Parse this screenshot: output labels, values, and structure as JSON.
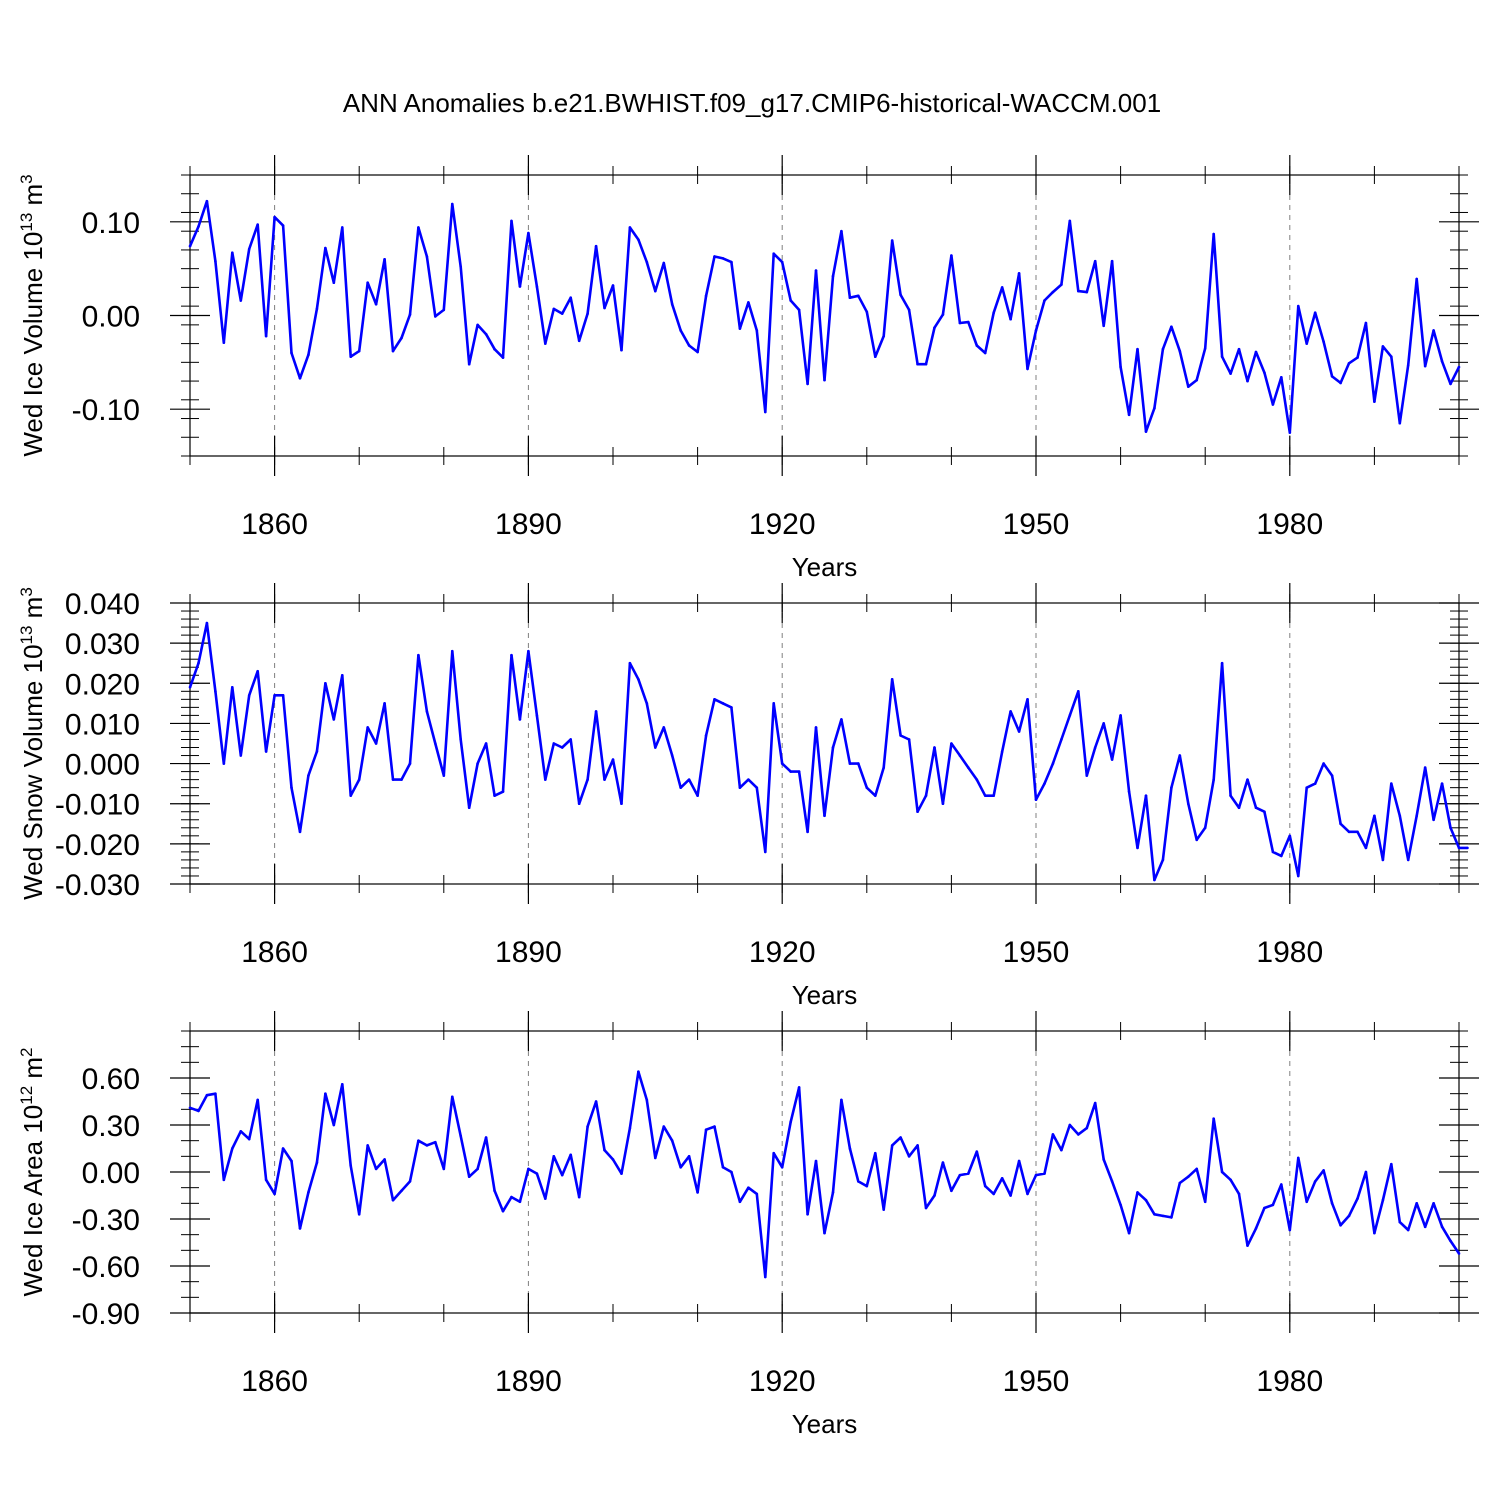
{
  "title": "ANN Anomalies b.e21.BWHIST.f09_g17.CMIP6-historical-WACCM.001",
  "colors": {
    "line": "#0000ff",
    "axis": "#000000",
    "grid": "#808080"
  },
  "chart_data": [
    {
      "type": "line",
      "ylabel_main": "Wed Ice Volume 10",
      "ylabel_sup": "13",
      "ylabel_unit": " m",
      "ylabel_unit_sup": "3",
      "xlabel": "Years",
      "xlim": [
        1850,
        2000
      ],
      "ylim": [
        -0.15,
        0.15
      ],
      "yticks": [
        -0.1,
        0.0,
        0.1
      ],
      "ytick_labels": [
        "-0.10",
        "0.00",
        "0.10"
      ],
      "yminor_step": 0.02,
      "xticks": [
        1860,
        1890,
        1920,
        1950,
        1980
      ],
      "xtick_labels": [
        "1860",
        "1890",
        "1920",
        "1950",
        "1980"
      ],
      "xminor_step": 10,
      "vgrid": [
        1860,
        1890,
        1920,
        1950,
        1980
      ],
      "x_start": 1850,
      "values": [
        0.074,
        0.095,
        0.122,
        0.058,
        -0.029,
        0.067,
        0.016,
        0.071,
        0.097,
        -0.022,
        0.105,
        0.096,
        -0.04,
        -0.067,
        -0.042,
        0.007,
        0.072,
        0.035,
        0.094,
        -0.044,
        -0.038,
        0.035,
        0.012,
        0.06,
        -0.038,
        -0.024,
        0.001,
        0.094,
        0.063,
        -0.001,
        0.006,
        0.119,
        0.052,
        -0.052,
        -0.01,
        -0.02,
        -0.036,
        -0.045,
        0.101,
        0.031,
        0.088,
        0.031,
        -0.03,
        0.007,
        0.002,
        0.019,
        -0.027,
        0.002,
        0.074,
        0.008,
        0.032,
        -0.037,
        0.094,
        0.081,
        0.057,
        0.026,
        0.056,
        0.012,
        -0.016,
        -0.032,
        -0.039,
        0.021,
        0.063,
        0.061,
        0.057,
        -0.014,
        0.014,
        -0.016,
        -0.103,
        0.066,
        0.057,
        0.016,
        0.006,
        -0.073,
        0.048,
        -0.069,
        0.042,
        0.09,
        0.019,
        0.021,
        0.004,
        -0.044,
        -0.022,
        0.08,
        0.022,
        0.006,
        -0.052,
        -0.052,
        -0.013,
        0.001,
        0.064,
        -0.008,
        -0.007,
        -0.032,
        -0.04,
        0.003,
        0.03,
        -0.004,
        0.045,
        -0.057,
        -0.016,
        0.016,
        0.025,
        0.033,
        0.101,
        0.026,
        0.025,
        0.058,
        -0.011,
        0.058,
        -0.055,
        -0.106,
        -0.036,
        -0.124,
        -0.099,
        -0.036,
        -0.012,
        -0.038,
        -0.076,
        -0.069,
        -0.035,
        0.087,
        -0.044,
        -0.062,
        -0.036,
        -0.07,
        -0.039,
        -0.061,
        -0.095,
        -0.066,
        -0.125,
        0.01,
        -0.03,
        0.003,
        -0.028,
        -0.065,
        -0.072,
        -0.051,
        -0.045,
        -0.008,
        -0.092,
        -0.033,
        -0.044,
        -0.115,
        -0.053,
        0.039,
        -0.054,
        -0.016,
        -0.049,
        -0.073,
        -0.055
      ]
    },
    {
      "type": "line",
      "ylabel_main": "Wed Snow Volume 10",
      "ylabel_sup": "13",
      "ylabel_unit": " m",
      "ylabel_unit_sup": "3",
      "xlabel": "Years",
      "xlim": [
        1850,
        2000
      ],
      "ylim": [
        -0.03,
        0.04
      ],
      "yticks": [
        -0.03,
        -0.02,
        -0.01,
        0.0,
        0.01,
        0.02,
        0.03,
        0.04
      ],
      "ytick_labels": [
        "-0.030",
        "-0.020",
        "-0.010",
        "0.000",
        "0.010",
        "0.020",
        "0.030",
        "0.040"
      ],
      "yminor_step": 0.002,
      "xticks": [
        1860,
        1890,
        1920,
        1950,
        1980
      ],
      "xtick_labels": [
        "1860",
        "1890",
        "1920",
        "1950",
        "1980"
      ],
      "xminor_step": 10,
      "vgrid": [
        1860,
        1890,
        1920,
        1950,
        1980
      ],
      "x_start": 1850,
      "values": [
        0.019,
        0.025,
        0.035,
        0.018,
        0.0,
        0.019,
        0.002,
        0.017,
        0.023,
        0.003,
        0.017,
        0.017,
        -0.006,
        -0.017,
        -0.003,
        0.003,
        0.02,
        0.011,
        0.022,
        -0.008,
        -0.004,
        0.009,
        0.005,
        0.015,
        -0.004,
        -0.004,
        0.0,
        0.027,
        0.013,
        0.005,
        -0.003,
        0.028,
        0.006,
        -0.011,
        0.0,
        0.005,
        -0.008,
        -0.007,
        0.027,
        0.011,
        0.028,
        0.012,
        -0.004,
        0.005,
        0.004,
        0.006,
        -0.01,
        -0.004,
        0.013,
        -0.004,
        0.001,
        -0.01,
        0.025,
        0.021,
        0.015,
        0.004,
        0.009,
        0.002,
        -0.006,
        -0.004,
        -0.008,
        0.007,
        0.016,
        0.015,
        0.014,
        -0.006,
        -0.004,
        -0.006,
        -0.022,
        0.015,
        0.0,
        -0.002,
        -0.002,
        -0.017,
        0.009,
        -0.013,
        0.004,
        0.011,
        0.0,
        0.0,
        -0.006,
        -0.008,
        -0.001,
        0.021,
        0.007,
        0.006,
        -0.012,
        -0.008,
        0.004,
        -0.01,
        0.005,
        0.002,
        -0.001,
        -0.004,
        -0.008,
        -0.008,
        0.003,
        0.013,
        0.008,
        0.016,
        -0.009,
        -0.005,
        0.0,
        0.006,
        0.012,
        0.018,
        -0.003,
        0.004,
        0.01,
        0.001,
        0.012,
        -0.007,
        -0.021,
        -0.008,
        -0.029,
        -0.024,
        -0.006,
        0.002,
        -0.01,
        -0.019,
        -0.016,
        -0.004,
        0.025,
        -0.008,
        -0.011,
        -0.004,
        -0.011,
        -0.012,
        -0.022,
        -0.023,
        -0.018,
        -0.028,
        -0.006,
        -0.005,
        0.0,
        -0.003,
        -0.015,
        -0.017,
        -0.017,
        -0.021,
        -0.013,
        -0.024,
        -0.005,
        -0.013,
        -0.024,
        -0.013,
        -0.001,
        -0.014,
        -0.005,
        -0.016,
        -0.021,
        -0.021
      ]
    },
    {
      "type": "line",
      "ylabel_main": "Wed Ice Area 10",
      "ylabel_sup": "12",
      "ylabel_unit": " m",
      "ylabel_unit_sup": "2",
      "xlabel": "Years",
      "xlim": [
        1850,
        2000
      ],
      "ylim": [
        -0.9,
        0.9
      ],
      "yticks": [
        -0.9,
        -0.6,
        -0.3,
        0.0,
        0.3,
        0.6
      ],
      "ytick_labels": [
        "-0.90",
        "-0.60",
        "-0.30",
        "0.00",
        "0.30",
        "0.60"
      ],
      "yminor_step": 0.1,
      "xticks": [
        1860,
        1890,
        1920,
        1950,
        1980
      ],
      "xtick_labels": [
        "1860",
        "1890",
        "1920",
        "1950",
        "1980"
      ],
      "xminor_step": 10,
      "vgrid": [
        1860,
        1890,
        1920,
        1950,
        1980
      ],
      "x_start": 1850,
      "values": [
        0.41,
        0.39,
        0.49,
        0.5,
        -0.05,
        0.15,
        0.26,
        0.21,
        0.46,
        -0.05,
        -0.14,
        0.15,
        0.07,
        -0.36,
        -0.13,
        0.06,
        0.5,
        0.3,
        0.56,
        0.04,
        -0.27,
        0.17,
        0.02,
        0.08,
        -0.18,
        -0.12,
        -0.06,
        0.2,
        0.17,
        0.19,
        0.02,
        0.48,
        0.23,
        -0.03,
        0.02,
        0.22,
        -0.12,
        -0.25,
        -0.16,
        -0.19,
        0.02,
        -0.01,
        -0.17,
        0.1,
        -0.02,
        0.11,
        -0.16,
        0.29,
        0.45,
        0.14,
        0.08,
        -0.01,
        0.28,
        0.64,
        0.46,
        0.09,
        0.29,
        0.2,
        0.03,
        0.1,
        -0.13,
        0.27,
        0.29,
        0.03,
        0.0,
        -0.19,
        -0.1,
        -0.14,
        -0.67,
        0.12,
        0.03,
        0.32,
        0.54,
        -0.27,
        0.07,
        -0.39,
        -0.13,
        0.46,
        0.15,
        -0.06,
        -0.09,
        0.12,
        -0.24,
        0.17,
        0.22,
        0.1,
        0.17,
        -0.23,
        -0.15,
        0.06,
        -0.12,
        -0.02,
        -0.01,
        0.13,
        -0.09,
        -0.14,
        -0.04,
        -0.15,
        0.07,
        -0.14,
        -0.02,
        -0.01,
        0.24,
        0.14,
        0.3,
        0.24,
        0.28,
        0.44,
        0.08,
        -0.06,
        -0.21,
        -0.39,
        -0.13,
        -0.18,
        -0.27,
        -0.28,
        -0.29,
        -0.07,
        -0.03,
        0.02,
        -0.19,
        0.34,
        0.0,
        -0.05,
        -0.14,
        -0.47,
        -0.36,
        -0.23,
        -0.21,
        -0.08,
        -0.37,
        0.09,
        -0.19,
        -0.06,
        0.01,
        -0.2,
        -0.34,
        -0.28,
        -0.17,
        0.0,
        -0.39,
        -0.18,
        0.05,
        -0.32,
        -0.37,
        -0.2,
        -0.35,
        -0.2,
        -0.35,
        -0.44,
        -0.52
      ]
    }
  ]
}
